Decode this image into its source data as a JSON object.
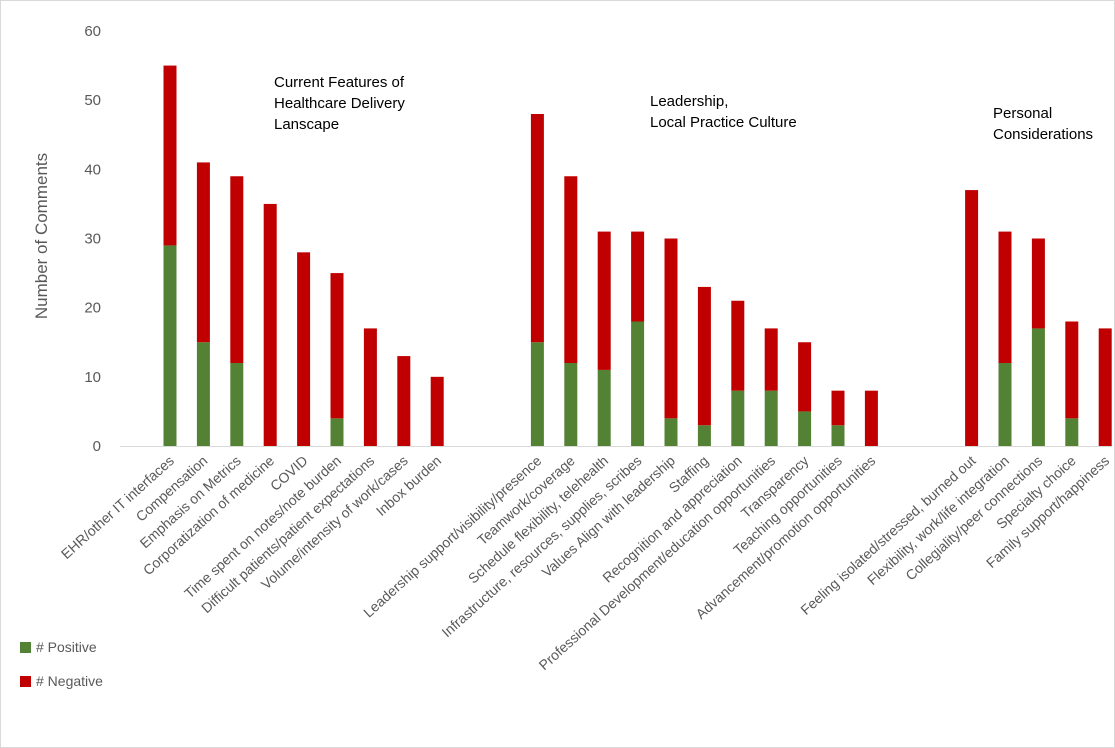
{
  "chart_data": {
    "type": "bar",
    "stacked": true,
    "ylabel": "Number of Comments",
    "ylim": [
      0,
      60
    ],
    "yticks": [
      0,
      10,
      20,
      30,
      40,
      50,
      60
    ],
    "grid": false,
    "legend_position": "bottom-left",
    "colors": {
      "positive": "#548235",
      "negative": "#c00000"
    },
    "groups": [
      {
        "title_lines": [
          "Current Features of",
          "Healthcare Delivery",
          "Lanscape"
        ]
      },
      {
        "title_lines": [
          "Leadership,",
          "Local Practice Culture"
        ]
      },
      {
        "title_lines": [
          "Personal",
          "Considerations"
        ]
      }
    ],
    "categories": [
      "EHR/other IT interfaces",
      "Compensation",
      "Emphasis on Metrics",
      "Corporatization of medicine",
      "COVID",
      "Time spent on notes/note burden",
      "Difficult patients/patient expectations",
      "Volume/intensity of work/cases",
      "Inbox burden",
      "Leadership support/visibility/presence",
      "Teamwork/coverage",
      "Schedule flexibility, telehealth",
      "Infrastructure, resources, supplies, scribes",
      "Values Align with leadership",
      "Staffing",
      "Recognition and appreciation",
      "Professional Development/education opportunities",
      "Transparency",
      "Teaching opportunities",
      "Advancement/promotion opportunities",
      "Feeling isolated/stressed, burned out",
      "Flexibility, work/life integration",
      "Collegiality/peer connections",
      "Specialty choice",
      "Family support/happiness"
    ],
    "category_group": [
      0,
      0,
      0,
      0,
      0,
      0,
      0,
      0,
      0,
      1,
      1,
      1,
      1,
      1,
      1,
      1,
      1,
      1,
      1,
      1,
      2,
      2,
      2,
      2,
      2
    ],
    "series": [
      {
        "name": "# Positive",
        "values": [
          29,
          15,
          12,
          0,
          0,
          4,
          0,
          0,
          0,
          15,
          12,
          11,
          18,
          4,
          3,
          8,
          8,
          5,
          3,
          0,
          0,
          12,
          17,
          4,
          0
        ]
      },
      {
        "name": "# Negative",
        "values": [
          26,
          26,
          27,
          35,
          28,
          21,
          17,
          13,
          10,
          33,
          27,
          20,
          13,
          26,
          20,
          13,
          9,
          10,
          5,
          8,
          37,
          19,
          13,
          14,
          17
        ]
      }
    ]
  }
}
